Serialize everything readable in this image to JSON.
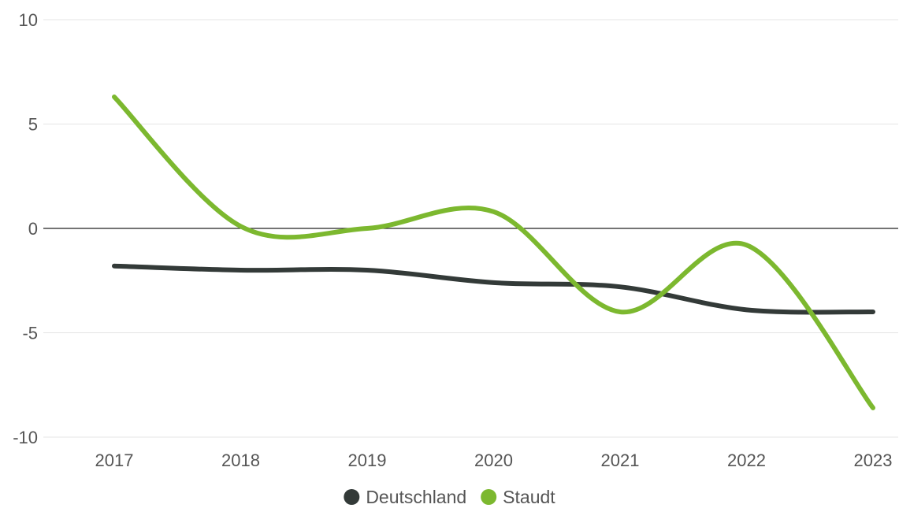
{
  "chart_data": {
    "type": "line",
    "title": "",
    "xlabel": "",
    "ylabel": "",
    "x": [
      "2017",
      "2018",
      "2019",
      "2020",
      "2021",
      "2022",
      "2023"
    ],
    "ylim": [
      -10,
      10
    ],
    "yticks": [
      10,
      5,
      0,
      -5,
      -10
    ],
    "grid": true,
    "legend_position": "bottom-center",
    "series": [
      {
        "name": "Deutschland",
        "color": "#333a38",
        "values": [
          -1.8,
          -2.0,
          -2.0,
          -2.6,
          -2.8,
          -3.9,
          -4.0
        ]
      },
      {
        "name": "Staudt",
        "color": "#7cb82f",
        "values": [
          6.3,
          0.1,
          0.0,
          0.8,
          -4.0,
          -0.8,
          -8.6
        ]
      }
    ]
  }
}
